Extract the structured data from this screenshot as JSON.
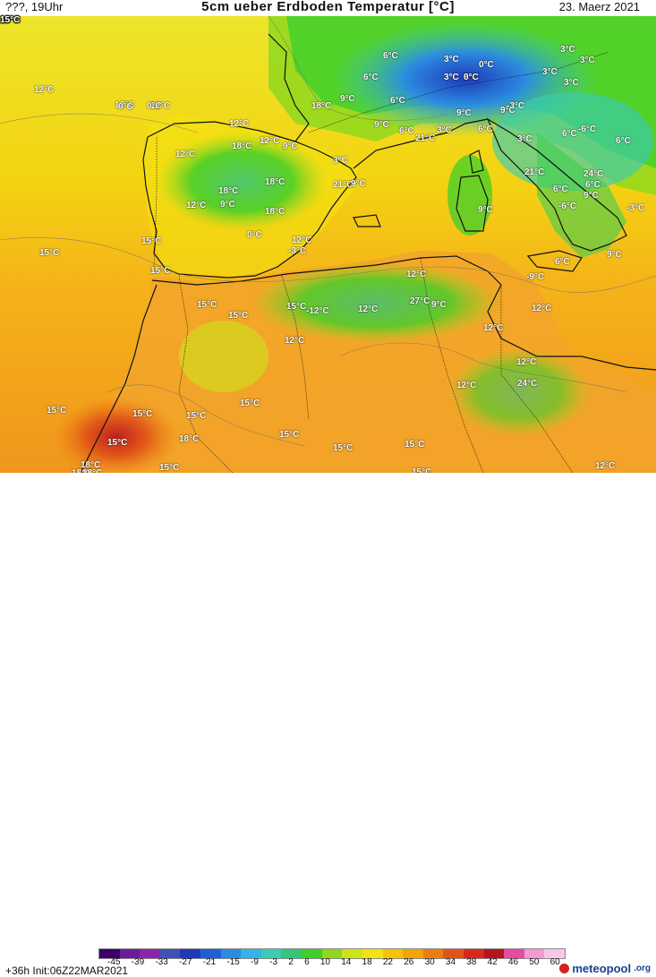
{
  "header": {
    "left": "???, 19Uhr",
    "title": "5cm ueber Erdboden Temperatur [°C]",
    "right": "23. Maerz 2021"
  },
  "footer": {
    "init": "+36h  Init:06Z22MAR2021",
    "brand": "meteopool",
    "brand_suffix": ".org",
    "colorbar_ticks": [
      "-45",
      "-39",
      "-33",
      "-27",
      "-21",
      "-15",
      "-9",
      "-3",
      "2",
      "6",
      "10",
      "14",
      "18",
      "22",
      "26",
      "30",
      "34",
      "38",
      "42",
      "46",
      "50",
      "60"
    ]
  },
  "colors": {
    "colorbar": [
      "#3a0068",
      "#6a1b9a",
      "#8e24aa",
      "#3f51b5",
      "#1e3ab8",
      "#1f5fd6",
      "#2b8be0",
      "#36b3e6",
      "#3ccbb4",
      "#35c47a",
      "#3fcf2a",
      "#8fd81e",
      "#cfe31a",
      "#f3e310",
      "#f7c20a",
      "#f3a40a",
      "#ec7d10",
      "#e25318",
      "#d8281c",
      "#b8121c",
      "#e64ca0",
      "#f49ad0",
      "#f7c8e6"
    ],
    "sea": "#f5a623",
    "interior": "#f2cf10",
    "north_africa": "#f2a42a",
    "alps": "#1e5fcf",
    "green_zone": "#3ccf52"
  },
  "labels": [
    "12°C",
    "12°C",
    "12°C",
    "12°C",
    "12°C",
    "12°C",
    "12°C",
    "15°C",
    "15°C",
    "15°C",
    "15°C",
    "15°C",
    "15°C",
    "15°C",
    "15°C",
    "15°C",
    "15°C",
    "15°C",
    "15°C",
    "15°C",
    "15°C",
    "15°C",
    "15°C",
    "18°C",
    "18°C",
    "18°C",
    "18°C",
    "18°C",
    "18°C",
    "18°C",
    "18°C",
    "18°C",
    "21°C",
    "21°C",
    "21°C",
    "24°C",
    "24°C",
    "27°C",
    "9°C",
    "9°C",
    "9°C",
    "9°C",
    "9°C",
    "9°C",
    "9°C",
    "9°C",
    "9°C",
    "9°C",
    "9°C",
    "6°C",
    "6°C",
    "6°C",
    "6°C",
    "6°C",
    "6°C",
    "6°C",
    "6°C",
    "6°C",
    "6°C",
    "3°C",
    "3°C",
    "3°C",
    "3°C",
    "3°C",
    "3°C",
    "3°C",
    "3°C",
    "3°C",
    "3°C",
    "0°C",
    "0°C",
    "0°C",
    "0°C",
    "0°C",
    "-3°C",
    "-3°C",
    "-3°C",
    "-6°C",
    "-6°C",
    "-9°C",
    "-12°C",
    "12°C",
    "12°C",
    "12°C",
    "12°C",
    "12°C",
    "12°C",
    "12°C",
    "12°C",
    "12°C",
    "12°C",
    "12°C",
    "12°C",
    "12°C",
    "12°C",
    "15°C",
    "15°C",
    "15°C",
    "15°C",
    "15°C",
    "15°C"
  ]
}
